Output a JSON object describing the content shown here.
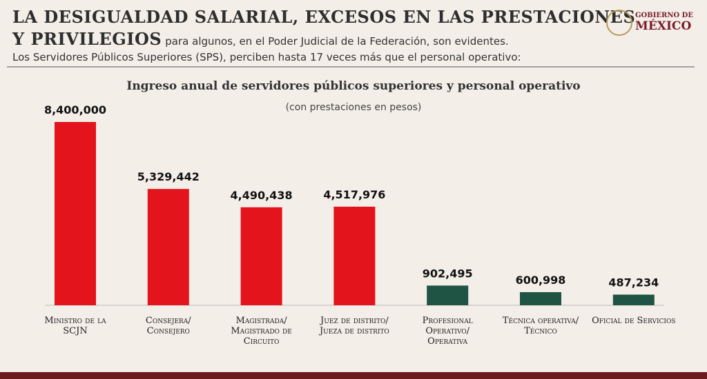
{
  "header": {
    "title_line1": "LA DESIGUALDAD SALARIAL, EXCESOS EN LAS PRESTACIONES",
    "title_line2_emphasis": "Y PRIVILEGIOS",
    "title_line2_rest": "para algunos, en el Poder Judicial de la Federación, son evidentes.",
    "subtitle": "Los Servidores Públicos Superiores (SPS), perciben hasta 17 veces más que el personal operativo:"
  },
  "logo": {
    "line1": "GOBIERNO DE",
    "line2": "MÉXICO"
  },
  "chart_data": {
    "type": "bar",
    "title": "Ingreso anual de servidores públicos superiores y personal operativo",
    "subtitle": "(con prestaciones en pesos)",
    "categories": [
      "Ministro de la SCJN",
      "Consejera/ Consejero",
      "Magistrada/ Magistrado de Circuito",
      "Juez de distrito/ Jueza de distrito",
      "Profesional Operativo/ Operativa",
      "Técnica operativa/ Técnico",
      "Oficial de Servicios"
    ],
    "values": [
      8400000,
      5329442,
      4490438,
      4517976,
      902495,
      600998,
      487234
    ],
    "value_labels": [
      "8,400,000",
      "5,329,442",
      "4,490,438",
      "4,517,976",
      "902,495",
      "600,998",
      "487,234"
    ],
    "colors": [
      "#e3141b",
      "#e3141b",
      "#e3141b",
      "#e3141b",
      "#1f5444",
      "#1f5444",
      "#1f5444"
    ]
  }
}
